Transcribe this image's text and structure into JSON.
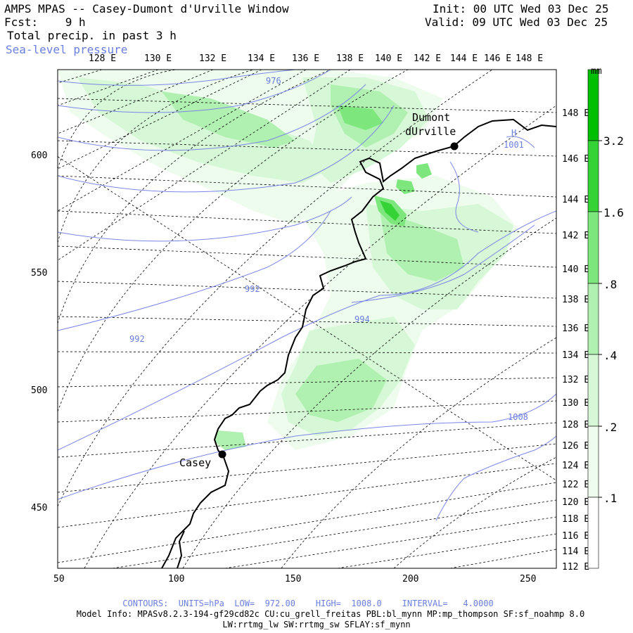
{
  "header": {
    "title": "AMPS MPAS -- Casey-Dumont d'Urville Window",
    "forecast": "Fcst:    9 h",
    "init": "Init: 00 UTC Wed 03 Dec 25",
    "valid": "Valid: 09 UTC Wed 03 Dec 25",
    "field": "Total precip. in past 3 h",
    "overlay": "Sea-level pressure"
  },
  "colors": {
    "contour": "#7b86e8",
    "precip_01": "#eefcee",
    "precip_02": "#d6f8d6",
    "precip_04": "#b0f0b0",
    "precip_08": "#7de67d",
    "precip_16": "#36d336",
    "precip_32": "#00bf00"
  },
  "axes": {
    "top_lon": [
      "128 E",
      "130 E",
      "132 E",
      "134 E",
      "136 E",
      "138 E",
      "140 E",
      "142 E",
      "144 E",
      "146 E",
      "148 E"
    ],
    "right_lon": [
      "148 E",
      "146 E",
      "144 E",
      "142 E",
      "140 E",
      "138 E",
      "136 E",
      "134 E",
      "132 E",
      "130 E",
      "128 E",
      "126 E",
      "124 E",
      "122 E",
      "120 E",
      "118 E",
      "116 E",
      "114 E",
      "112 E"
    ],
    "left_y": [
      "600",
      "550",
      "500",
      "450"
    ],
    "bottom_x": [
      "50",
      "100",
      "150",
      "200",
      "250"
    ]
  },
  "stations": [
    {
      "name_line1": "Dumont",
      "name_line2": "dUrville"
    },
    {
      "name_line1": "Casey",
      "name_line2": ""
    }
  ],
  "pressure_labels": [
    "976",
    "992",
    "992",
    "994",
    "1008",
    "1001"
  ],
  "pressure_high_marker": "H",
  "colorbar": {
    "unit": "mm",
    "labels": [
      "3.2",
      "1.6",
      ".8",
      ".4",
      ".2",
      ".1"
    ]
  },
  "footer": {
    "contours": "CONTOURS:  UNITS=hPa  LOW=  972.00    HIGH=  1008.0    INTERVAL=   4.0000",
    "model_info": "Model Info: MPASv8.2.3-194-gf29cd82c CU:cu_grell_freitas PBL:bl_mynn MP:mp_thompson SF:sf_noahmp 8.0",
    "physics": "LW:rrtmg_lw SW:rrtmg_sw SFLAY:sf_mynn"
  }
}
